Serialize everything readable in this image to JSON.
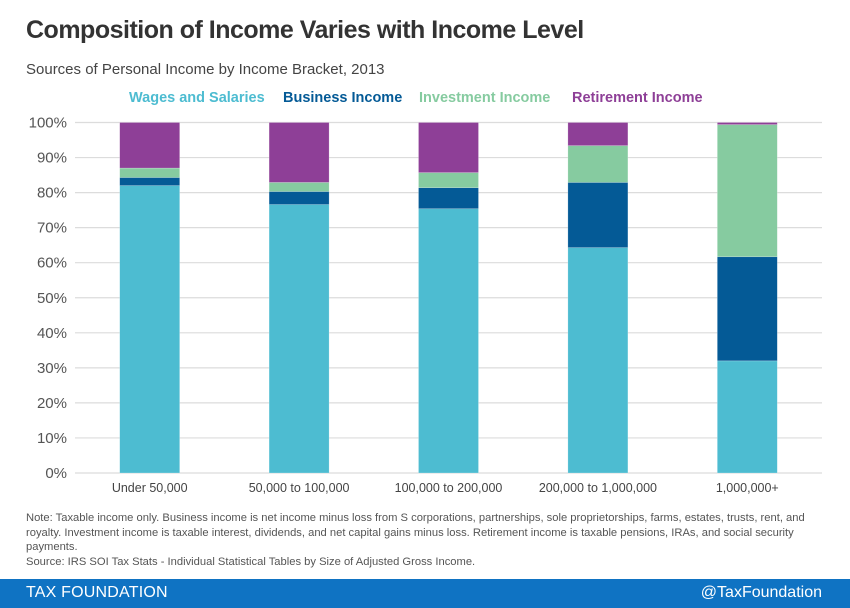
{
  "header": {
    "title": "Composition of Income Varies with Income Level",
    "subtitle": "Sources of Personal Income by Income Bracket, 2013"
  },
  "chart_data": {
    "type": "bar",
    "stacked": true,
    "title": "Composition of Income Varies with Income Level",
    "subtitle": "Sources of Personal Income by Income Bracket, 2013",
    "xlabel": "",
    "ylabel": "",
    "ylim": [
      0,
      100
    ],
    "y_ticks": [
      "0%",
      "10%",
      "20%",
      "30%",
      "40%",
      "50%",
      "60%",
      "70%",
      "80%",
      "90%",
      "100%"
    ],
    "grid": true,
    "legend_position": "top",
    "categories": [
      "Under 50,000",
      "50,000 to 100,000",
      "100,000 to 200,000",
      "200,000 to 1,000,000",
      "1,000,000+"
    ],
    "series": [
      {
        "name": "Wages and Salaries",
        "color": "#4dbcd1",
        "values": [
          82.0,
          76.6,
          75.4,
          64.3,
          32.0
        ]
      },
      {
        "name": "Business Income",
        "color": "#045a96",
        "values": [
          2.3,
          3.7,
          6.0,
          18.6,
          29.7
        ]
      },
      {
        "name": "Investment Income",
        "color": "#86cba0",
        "values": [
          2.7,
          2.6,
          4.3,
          10.5,
          37.7
        ]
      },
      {
        "name": "Retirement Income",
        "color": "#8e3f97",
        "values": [
          13.0,
          17.1,
          14.3,
          6.6,
          0.6
        ]
      }
    ]
  },
  "notes": {
    "note": "Note: Taxable income only. Business income is net income minus loss from S corporations, partnerships, sole proprietorships, farms, estates, trusts, rent, and royalty. Investment income is taxable interest, dividends, and net capital gains minus loss. Retirement income is taxable pensions, IRAs, and social security payments.",
    "source": "Source: IRS SOI Tax Stats - Individual Statistical Tables by Size of Adjusted Gross Income."
  },
  "footer": {
    "brand": "TAX FOUNDATION",
    "handle": "@TaxFoundation",
    "color": "#0f73c3"
  }
}
